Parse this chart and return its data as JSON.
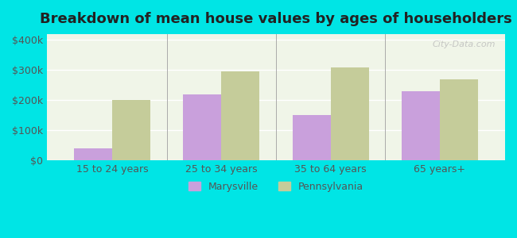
{
  "title": "Breakdown of mean house values by ages of householders",
  "categories": [
    "15 to 24 years",
    "25 to 34 years",
    "35 to 64 years",
    "65 years+"
  ],
  "marysville_values": [
    40000,
    220000,
    150000,
    230000
  ],
  "pennsylvania_values": [
    200000,
    295000,
    310000,
    270000
  ],
  "marysville_color": "#c9a0dc",
  "pennsylvania_color": "#c5cc9a",
  "background_color": "#00e5e5",
  "plot_bg_color": "#f0f5e8",
  "ylim": [
    0,
    420000
  ],
  "yticks": [
    0,
    100000,
    200000,
    300000,
    400000
  ],
  "ytick_labels": [
    "$0",
    "$100k",
    "$200k",
    "$300k",
    "$400k"
  ],
  "bar_width": 0.35,
  "legend_labels": [
    "Marysville",
    "Pennsylvania"
  ],
  "title_fontsize": 13,
  "tick_fontsize": 9,
  "legend_fontsize": 9
}
